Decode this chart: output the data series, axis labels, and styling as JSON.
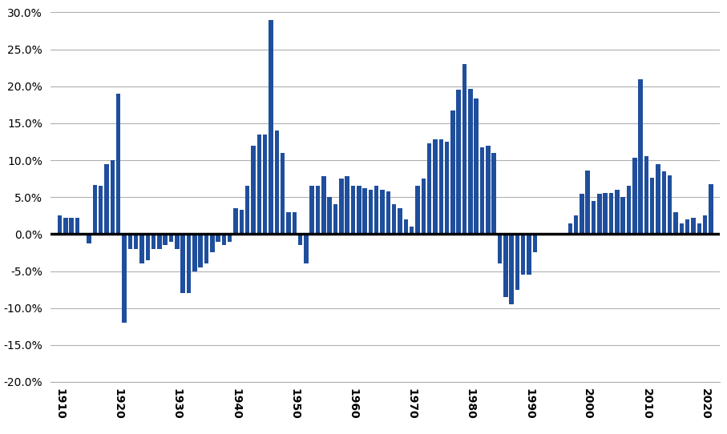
{
  "years": [
    1910,
    1911,
    1912,
    1913,
    1914,
    1915,
    1916,
    1917,
    1918,
    1919,
    1920,
    1921,
    1922,
    1923,
    1924,
    1925,
    1926,
    1927,
    1928,
    1929,
    1930,
    1931,
    1932,
    1933,
    1934,
    1935,
    1936,
    1937,
    1938,
    1939,
    1940,
    1941,
    1942,
    1943,
    1944,
    1945,
    1946,
    1947,
    1948,
    1949,
    1950,
    1951,
    1952,
    1953,
    1954,
    1955,
    1956,
    1957,
    1958,
    1959,
    1960,
    1961,
    1962,
    1963,
    1964,
    1965,
    1966,
    1967,
    1968,
    1969,
    1970,
    1971,
    1972,
    1973,
    1974,
    1975,
    1976,
    1977,
    1978,
    1979,
    1980,
    1981,
    1982,
    1983,
    1984,
    1985,
    1986,
    1987,
    1988,
    1989,
    1990,
    1991,
    1992,
    1993,
    1994,
    1995,
    1996,
    1997,
    1998,
    1999,
    2000,
    2001,
    2002,
    2003,
    2004,
    2005,
    2006,
    2007,
    2008,
    2009,
    2010,
    2011,
    2012,
    2013,
    2014,
    2015,
    2016,
    2017,
    2018,
    2019,
    2020,
    2021
  ],
  "values": [
    0.025,
    0.022,
    0.022,
    0.022,
    0.0,
    -0.013,
    0.067,
    0.065,
    0.095,
    0.1,
    0.19,
    -0.12,
    -0.02,
    -0.02,
    -0.04,
    -0.035,
    -0.02,
    -0.02,
    -0.015,
    -0.01,
    -0.02,
    -0.08,
    -0.08,
    -0.05,
    -0.045,
    -0.04,
    -0.025,
    -0.01,
    -0.015,
    -0.01,
    0.035,
    0.033,
    0.065,
    0.12,
    0.135,
    0.135,
    0.29,
    0.14,
    0.11,
    0.03,
    0.03,
    -0.015,
    -0.04,
    0.065,
    0.065,
    0.078,
    0.05,
    0.04,
    0.075,
    0.078,
    0.065,
    0.065,
    0.062,
    0.06,
    0.065,
    0.06,
    0.058,
    0.04,
    0.035,
    0.02,
    0.01,
    0.065,
    0.075,
    0.123,
    0.128,
    0.128,
    0.125,
    0.167,
    0.195,
    0.23,
    0.197,
    0.183,
    0.117,
    0.12,
    0.11,
    -0.04,
    -0.085,
    -0.095,
    -0.075,
    -0.055,
    -0.055,
    -0.025,
    0.0,
    0.0,
    0.0,
    0.0,
    0.0,
    0.015,
    0.025,
    0.055,
    0.086,
    0.045,
    0.055,
    0.056,
    0.056,
    0.06,
    0.05,
    0.065,
    0.103,
    0.21,
    0.106,
    0.076,
    0.095,
    0.085,
    0.08,
    0.03,
    0.015,
    0.02,
    0.022,
    0.015,
    0.025,
    0.068
  ],
  "bar_color": "#1f4e9c",
  "background_color": "#ffffff",
  "grid_color": "#b0b0b0",
  "zero_line_color": "#000000",
  "ylim": [
    -0.2,
    0.305
  ],
  "yticks": [
    -0.2,
    -0.15,
    -0.1,
    -0.05,
    0.0,
    0.05,
    0.1,
    0.15,
    0.2,
    0.25,
    0.3
  ],
  "xticks": [
    1910,
    1920,
    1930,
    1940,
    1950,
    1960,
    1970,
    1980,
    1990,
    2000,
    2010,
    2020
  ],
  "xlim_left": 1908.5,
  "xlim_right": 2022.5
}
